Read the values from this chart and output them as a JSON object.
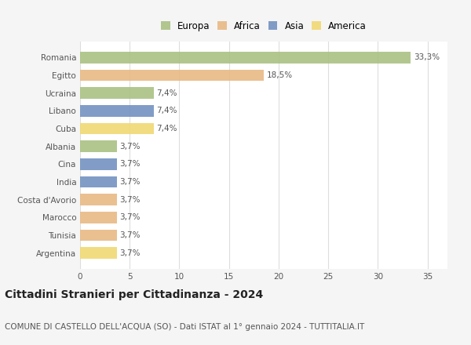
{
  "countries": [
    "Romania",
    "Egitto",
    "Ucraina",
    "Libano",
    "Cuba",
    "Albania",
    "Cina",
    "India",
    "Costa d'Avorio",
    "Marocco",
    "Tunisia",
    "Argentina"
  ],
  "values": [
    33.3,
    18.5,
    7.4,
    7.4,
    7.4,
    3.7,
    3.7,
    3.7,
    3.7,
    3.7,
    3.7,
    3.7
  ],
  "labels": [
    "33,3%",
    "18,5%",
    "7,4%",
    "7,4%",
    "7,4%",
    "3,7%",
    "3,7%",
    "3,7%",
    "3,7%",
    "3,7%",
    "3,7%",
    "3,7%"
  ],
  "colors": [
    "#a8c080",
    "#e8b882",
    "#a8c080",
    "#7090c0",
    "#f0d870",
    "#a8c080",
    "#7090c0",
    "#7090c0",
    "#e8b882",
    "#e8b882",
    "#e8b882",
    "#f0d870"
  ],
  "legend_labels": [
    "Europa",
    "Africa",
    "Asia",
    "America"
  ],
  "legend_colors": [
    "#a8c080",
    "#e8b882",
    "#7090c0",
    "#f0d870"
  ],
  "title": "Cittadini Stranieri per Cittadinanza - 2024",
  "subtitle": "COMUNE DI CASTELLO DELL'ACQUA (SO) - Dati ISTAT al 1° gennaio 2024 - TUTTITALIA.IT",
  "xlim": [
    0,
    37
  ],
  "xticks": [
    0,
    5,
    10,
    15,
    20,
    25,
    30,
    35
  ],
  "bg_color": "#f5f5f5",
  "bar_bg_color": "#ffffff",
  "grid_color": "#dddddd",
  "title_fontsize": 10,
  "subtitle_fontsize": 7.5,
  "label_fontsize": 7.5,
  "tick_fontsize": 7.5,
  "legend_fontsize": 8.5
}
